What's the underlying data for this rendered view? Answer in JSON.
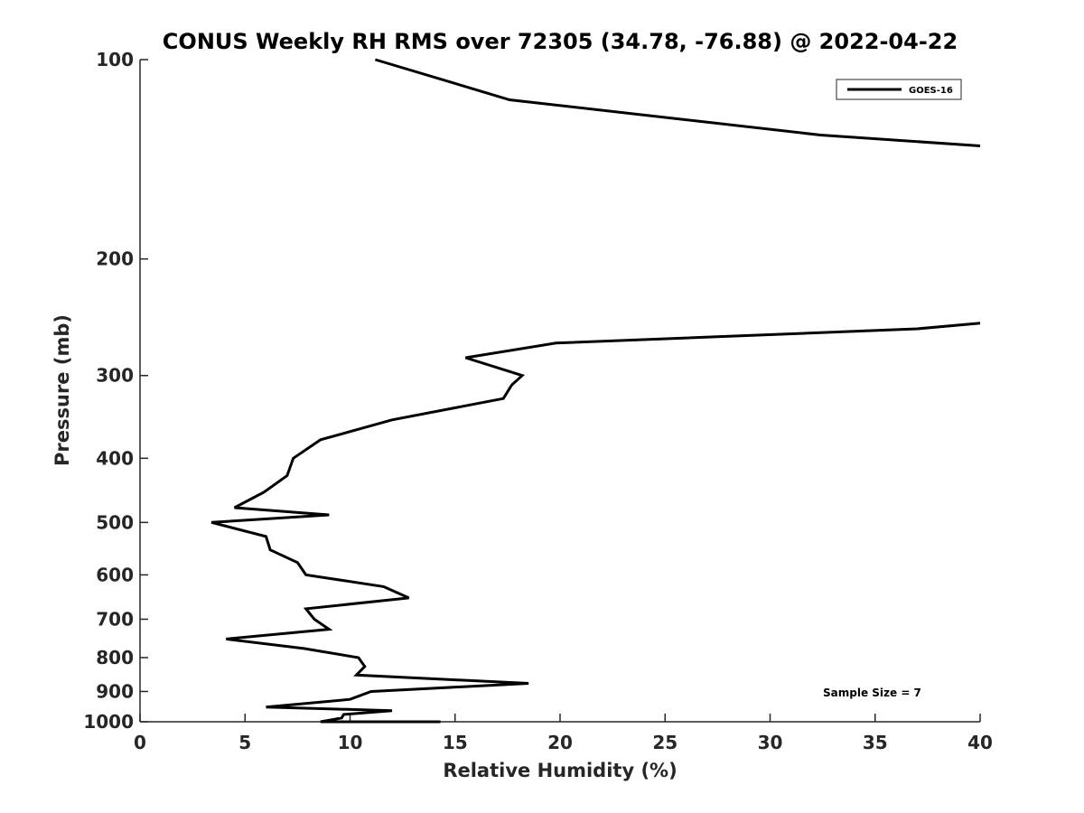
{
  "chart_data": {
    "type": "line",
    "title": "CONUS Weekly RH RMS over 72305 (34.78, -76.88) @ 2022-04-22",
    "xlabel": "Relative Humidity (%)",
    "ylabel": "Pressure (mb)",
    "xlim": [
      0,
      40
    ],
    "ylim": [
      100,
      1000
    ],
    "y_scale": "log",
    "y_reversed": true,
    "x_ticks": [
      0,
      5,
      10,
      15,
      20,
      25,
      30,
      35,
      40
    ],
    "y_ticks": [
      100,
      200,
      300,
      400,
      500,
      600,
      700,
      800,
      900,
      1000
    ],
    "grid": false,
    "legend_position": "top-right",
    "annotation": "Sample Size = 7",
    "series": [
      {
        "name": "GOES-16",
        "color": "#000000",
        "segments": [
          [
            {
              "x": 11.2,
              "y": 100
            },
            {
              "x": 17.6,
              "y": 115
            },
            {
              "x": 32.4,
              "y": 130
            },
            {
              "x": 40.0,
              "y": 135
            }
          ],
          [
            {
              "x": 40.0,
              "y": 250
            },
            {
              "x": 37.0,
              "y": 255
            },
            {
              "x": 19.8,
              "y": 268
            },
            {
              "x": 15.5,
              "y": 282
            },
            {
              "x": 18.2,
              "y": 300
            },
            {
              "x": 17.7,
              "y": 310
            },
            {
              "x": 17.3,
              "y": 325
            },
            {
              "x": 12.0,
              "y": 350
            },
            {
              "x": 8.6,
              "y": 375
            },
            {
              "x": 7.3,
              "y": 400
            },
            {
              "x": 7.0,
              "y": 425
            },
            {
              "x": 5.9,
              "y": 450
            },
            {
              "x": 4.5,
              "y": 475
            },
            {
              "x": 9.0,
              "y": 487
            },
            {
              "x": 3.4,
              "y": 500
            },
            {
              "x": 6.0,
              "y": 525
            },
            {
              "x": 6.2,
              "y": 550
            },
            {
              "x": 7.5,
              "y": 575
            },
            {
              "x": 7.9,
              "y": 600
            },
            {
              "x": 11.6,
              "y": 625
            },
            {
              "x": 12.8,
              "y": 650
            },
            {
              "x": 7.9,
              "y": 675
            },
            {
              "x": 8.3,
              "y": 700
            },
            {
              "x": 9.0,
              "y": 725
            },
            {
              "x": 4.1,
              "y": 750
            },
            {
              "x": 7.8,
              "y": 775
            },
            {
              "x": 10.4,
              "y": 800
            },
            {
              "x": 10.7,
              "y": 825
            },
            {
              "x": 10.3,
              "y": 850
            },
            {
              "x": 18.5,
              "y": 875
            },
            {
              "x": 11.0,
              "y": 900
            },
            {
              "x": 10.0,
              "y": 925
            },
            {
              "x": 6.0,
              "y": 950
            },
            {
              "x": 12.0,
              "y": 962
            },
            {
              "x": 9.7,
              "y": 975
            },
            {
              "x": 9.6,
              "y": 987
            },
            {
              "x": 8.6,
              "y": 1000
            },
            {
              "x": 14.3,
              "y": 1005
            }
          ]
        ]
      }
    ]
  }
}
